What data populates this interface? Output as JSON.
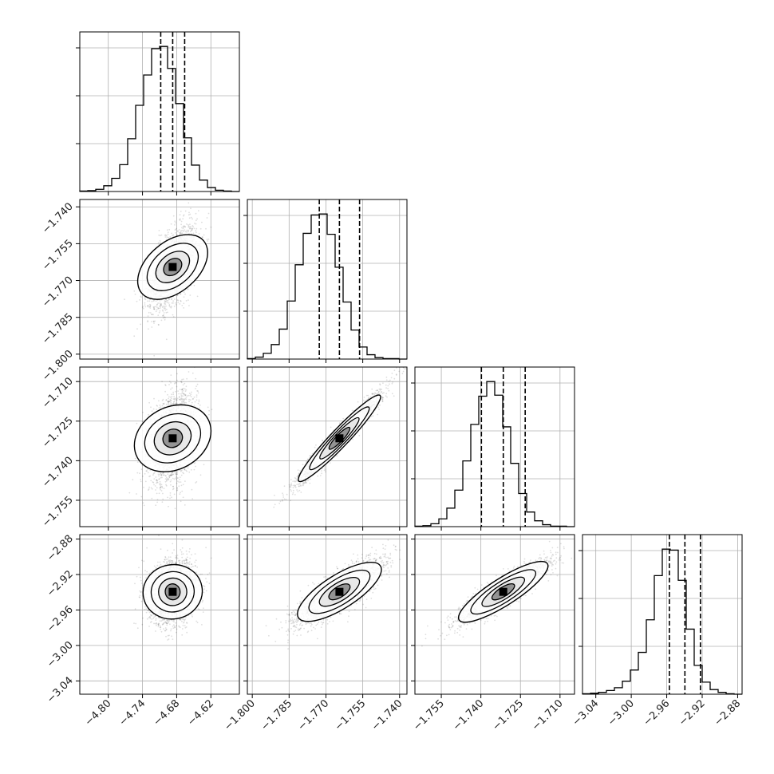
{
  "chart_data": {
    "type": "corner",
    "parameters": [
      {
        "range": [
          -4.85,
          -4.57
        ],
        "median": -4.687,
        "q16": -4.708,
        "q84": -4.666,
        "ticks": [
          -4.8,
          -4.74,
          -4.68,
          -4.62
        ],
        "tick_labels": [
          "−4.80",
          "−4.74",
          "−4.68",
          "−4.62"
        ]
      },
      {
        "range": [
          -1.802,
          -1.737
        ],
        "median": -1.7645,
        "q16": -1.7727,
        "q84": -1.7563,
        "ticks": [
          -1.8,
          -1.785,
          -1.77,
          -1.755,
          -1.74
        ],
        "tick_labels": [
          "−1.800",
          "−1.785",
          "−1.770",
          "−1.755",
          "−1.740"
        ]
      },
      {
        "range": [
          -1.765,
          -1.7045
        ],
        "median": -1.7315,
        "q16": -1.7398,
        "q84": -1.7232,
        "ticks": [
          -1.755,
          -1.74,
          -1.725,
          -1.71
        ],
        "tick_labels": [
          "−1.755",
          "−1.740",
          "−1.725",
          "−1.710"
        ]
      },
      {
        "range": [
          -3.055,
          -2.875
        ],
        "median": -2.9395,
        "q16": -2.957,
        "q84": -2.922,
        "ticks": [
          -3.04,
          -3.0,
          -2.96,
          -2.92,
          -2.88
        ],
        "tick_labels": [
          "−3.04",
          "−3.00",
          "−2.96",
          "−2.92",
          "−2.88"
        ]
      }
    ],
    "pairs": [
      {
        "row": 1,
        "col": 0,
        "corr": 0.5
      },
      {
        "row": 2,
        "col": 0,
        "corr": 0.3
      },
      {
        "row": 2,
        "col": 1,
        "corr": 0.97
      },
      {
        "row": 3,
        "col": 0,
        "corr": 0.15
      },
      {
        "row": 3,
        "col": 1,
        "corr": 0.82
      },
      {
        "row": 3,
        "col": 2,
        "corr": 0.9
      }
    ],
    "histograms": [
      [
        1,
        2,
        5,
        13,
        30,
        61,
        120,
        196,
        265,
        325,
        330,
        280,
        200,
        122,
        60,
        26,
        9,
        3,
        1,
        0
      ],
      [
        1,
        4,
        12,
        30,
        62,
        120,
        195,
        260,
        298,
        300,
        258,
        190,
        118,
        60,
        25,
        9,
        3,
        1,
        1,
        0
      ],
      [
        1,
        2,
        6,
        16,
        38,
        75,
        135,
        210,
        268,
        298,
        270,
        205,
        130,
        68,
        30,
        12,
        4,
        1,
        1,
        0
      ],
      [
        1,
        2,
        4,
        8,
        14,
        28,
        52,
        90,
        160,
        255,
        312,
        310,
        245,
        140,
        62,
        26,
        10,
        4,
        1,
        0
      ]
    ],
    "quantile_lines": [
      "q16",
      "median",
      "q84"
    ],
    "grid": true,
    "colors": {
      "line": "#000000",
      "grid": "#b0b0b0",
      "points": "#000000"
    }
  }
}
